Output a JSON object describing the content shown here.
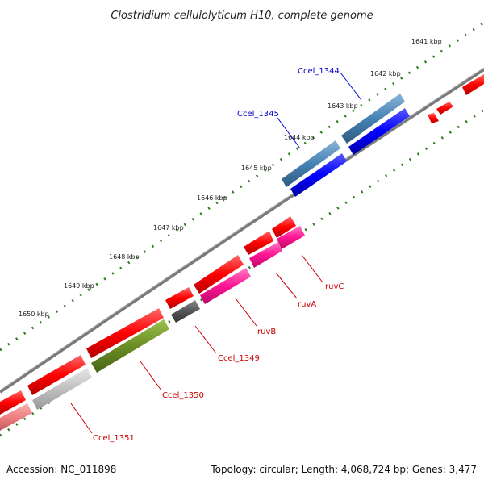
{
  "title": "Clostridium cellulolyticum H10, complete genome",
  "footer": {
    "accession": "Accession: NC_011898",
    "topology": "Topology: circular; Length: 4,068,724 bp; Genes: 3,477"
  },
  "ticks": [
    "1641 kbp",
    "1642 kbp",
    "1643 kbp",
    "1644 kbp",
    "1645 kbp",
    "1646 kbp",
    "1647 kbp",
    "1648 kbp",
    "1649 kbp",
    "1650 kbp"
  ],
  "gene_labels": {
    "ccel_1344": "Ccel_1344",
    "ccel_1345": "Ccel_1345",
    "ruvC": "ruvC",
    "ruvA": "ruvA",
    "ruvB": "ruvB",
    "ccel_1349": "Ccel_1349",
    "ccel_1350": "Ccel_1350",
    "ccel_1351": "Ccel_1351"
  },
  "colors": {
    "backbone": "#808080",
    "tick": "#2e7d1f",
    "cds_red": "#ff0000",
    "cds_steelblue": "#4682b4",
    "cds_blue": "#0000ff",
    "cds_pink": "#ff1493",
    "cds_olive": "#6b8e23",
    "cds_gray": "#555555",
    "cds_lightgray": "#c0c0c0",
    "cds_salmon": "#f08080"
  }
}
